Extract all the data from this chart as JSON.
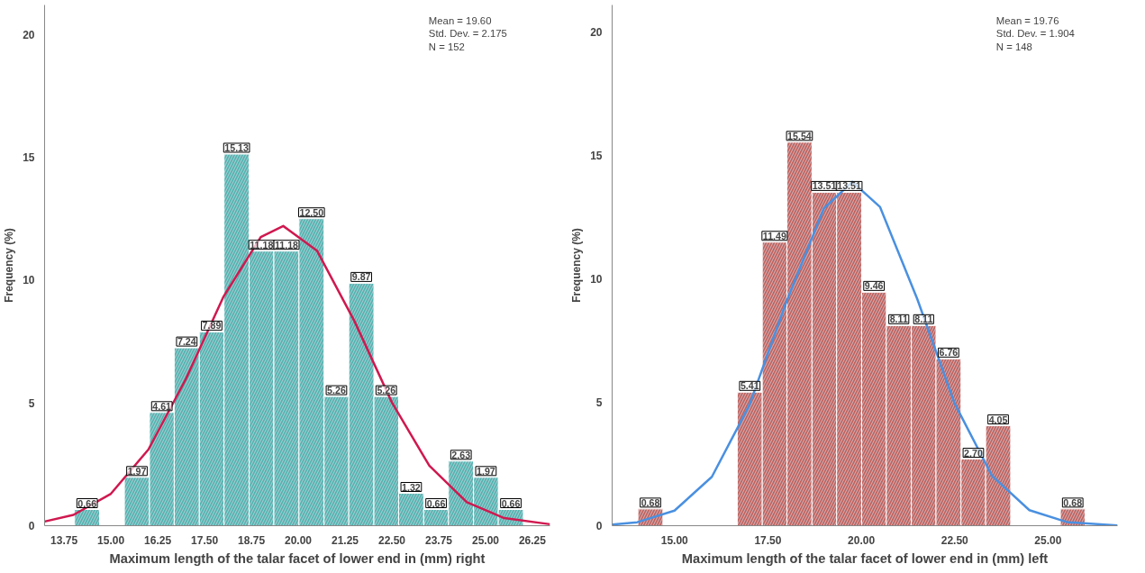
{
  "chart_data": [
    {
      "type": "histogram",
      "xlabel": "Maximum length of the talar facet of lower end in (mm) right",
      "ylabel": "Frequency (%)",
      "annotations": [
        "Mean = 19.60\nStd. Dev. = 2.175\nN = 152"
      ],
      "bins": [
        14.03,
        14.7,
        15.36,
        16.03,
        16.69,
        17.36,
        18.02,
        18.69,
        19.35,
        20.02,
        20.69,
        21.35,
        22.02,
        22.68,
        23.35,
        24.01,
        24.68,
        25.34,
        26.01
      ],
      "series": [
        {
          "color": "#4fb3ae",
          "values": [
            0.66,
            0,
            1.97,
            4.61,
            7.24,
            7.89,
            15.13,
            11.18,
            11.18,
            12.5,
            5.26,
            9.87,
            5.26,
            1.32,
            0.66,
            2.63,
            1.97,
            0.66
          ],
          "value_labels": [
            "0.66",
            null,
            "1.97",
            "4.61",
            "7.24",
            "7.89",
            "15.13",
            "11.18",
            "11.18",
            "12.50",
            "5.26",
            "9.87",
            "5.26",
            "1.32",
            "0.66",
            "2.63",
            "1.97",
            "0.66"
          ]
        },
        {
          "type": "line",
          "color": "#d0184f",
          "x": [
            13.23,
            14,
            15,
            16,
            17,
            18,
            19,
            19.6,
            20.5,
            21.5,
            22.5,
            23.5,
            24.5,
            25.5,
            26.72
          ],
          "values": [
            0.17,
            0.44,
            1.3,
            3.1,
            5.97,
            9.31,
            11.75,
            12.2,
            11.2,
            8.33,
            5.02,
            2.44,
            0.96,
            0.31,
            0.06
          ]
        }
      ],
      "xlim": [
        13.23,
        26.72
      ],
      "xticks": [
        13.75,
        {
          "value": 15,
          "label": "15.00"
        },
        16.25,
        {
          "value": 17.5,
          "label": "17.50"
        },
        18.75,
        {
          "value": 20,
          "label": "20.00"
        },
        21.25,
        {
          "value": 22.5,
          "label": "22.50"
        },
        23.75,
        {
          "value": 25,
          "label": "25.00"
        },
        26.25
      ],
      "ylim": [
        0,
        21.2
      ],
      "yticks": [
        0,
        5,
        10,
        15,
        20
      ],
      "grid": false,
      "legend": false
    },
    {
      "type": "histogram",
      "xlabel": "Maximum length of the talar facet of lower end in (mm) left",
      "ylabel": "Frequency (%)",
      "annotations": [
        "Mean = 19.76\nStd. Dev. = 1.904\nN = 148"
      ],
      "bins": [
        14.02,
        14.69,
        15.35,
        16.02,
        16.68,
        17.35,
        18.01,
        18.68,
        19.34,
        20.01,
        20.67,
        21.34,
        22.0,
        22.67,
        23.33,
        24.0,
        24.66,
        25.33,
        25.99
      ],
      "series": [
        {
          "color": "#c0605a",
          "values": [
            0.68,
            0,
            0,
            0,
            5.41,
            11.49,
            15.54,
            13.51,
            13.51,
            9.46,
            8.11,
            8.11,
            6.76,
            2.7,
            4.05,
            0,
            0,
            0.68
          ],
          "value_labels": [
            "0.68",
            null,
            null,
            null,
            "5.41",
            "11.49",
            "15.54",
            "13.51",
            "13.51",
            "9.46",
            "8.11",
            "8.11",
            "6.76",
            "2.70",
            "4.05",
            null,
            null,
            "0.68"
          ]
        },
        {
          "type": "line",
          "color": "#4a90e0",
          "x": [
            13.33,
            14,
            15,
            16,
            17,
            18,
            19,
            19.76,
            20.5,
            21.5,
            22.5,
            23.5,
            24.5,
            25.5,
            26.86
          ],
          "values": [
            0.05,
            0.14,
            0.61,
            1.98,
            4.87,
            9.09,
            12.86,
            13.93,
            12.92,
            9.18,
            4.95,
            2.02,
            0.63,
            0.15,
            0.01
          ]
        }
      ],
      "xlim": [
        13.33,
        26.86
      ],
      "xticks": [
        {
          "value": 15,
          "label": "15.00"
        },
        {
          "value": 17.5,
          "label": "17.50"
        },
        {
          "value": 20,
          "label": "20.00"
        },
        {
          "value": 22.5,
          "label": "22.50"
        },
        {
          "value": 25,
          "label": "25.00"
        }
      ],
      "ylim": [
        0,
        21.1
      ],
      "yticks": [
        0,
        5,
        10,
        15,
        20
      ],
      "grid": false,
      "legend": false
    }
  ]
}
